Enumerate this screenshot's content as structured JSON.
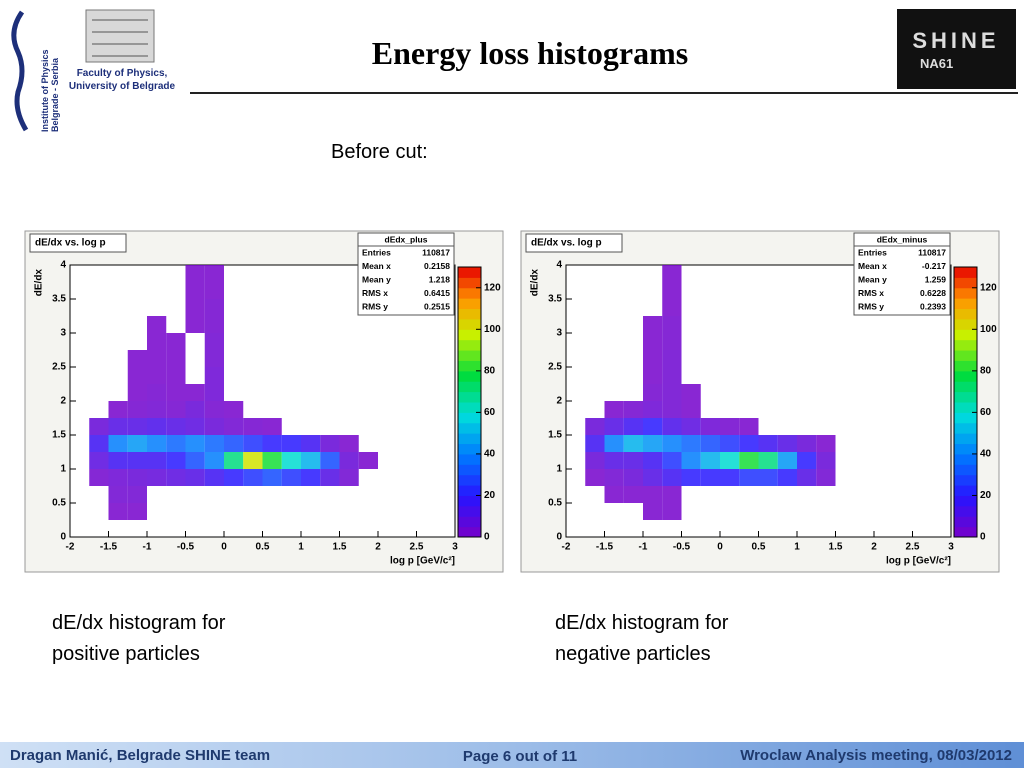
{
  "header": {
    "title": "Energy loss histograms",
    "affiliation": [
      "Faculty of Physics,",
      "University of Belgrade"
    ],
    "institute": [
      "Institute of Physics",
      "Belgrade - Serbia"
    ],
    "logo": [
      "SHINE",
      "NA61"
    ]
  },
  "subtitle": "Before cut:",
  "captions": [
    [
      "dE/dx histogram for",
      "positive particles"
    ],
    [
      "dE/dx histogram for",
      "negative particles"
    ]
  ],
  "footer": {
    "author": "Dragan Manić, Belgrade SHINE team",
    "page": "Page 6 out of 11",
    "meeting": "Wroclaw Analysis meeting,  08/03/2012"
  },
  "chart_data": [
    {
      "type": "heatmap",
      "title": "dE/dx vs. log p",
      "stats_title": "dEdx_plus",
      "stats": [
        {
          "label": "Entries",
          "value": 110817
        },
        {
          "label": "Mean x",
          "value": 0.2158
        },
        {
          "label": "Mean y",
          "value": 1.218
        },
        {
          "label": "RMS x",
          "value": 0.6415
        },
        {
          "label": "RMS y",
          "value": 0.2515
        }
      ],
      "xlabel": "log p [GeV/c²]",
      "ylabel": "dE/dx",
      "xlim": [
        -2,
        3
      ],
      "ylim": [
        0,
        4
      ],
      "xticks": [
        -2,
        -1.5,
        -1,
        -0.5,
        0,
        0.5,
        1,
        1.5,
        2,
        2.5,
        3
      ],
      "yticks": [
        0,
        0.5,
        1,
        1.5,
        2,
        2.5,
        3,
        3.5,
        4
      ],
      "zlim": [
        0,
        130
      ],
      "zticks": [
        0,
        20,
        40,
        60,
        80,
        100,
        120
      ],
      "xbins": [
        -2,
        -1.75,
        -1.5,
        -1.25,
        -1,
        -0.75,
        -0.5,
        -0.25,
        0,
        0.25,
        0.5,
        0.75,
        1,
        1.25,
        1.5,
        1.75,
        2,
        2.25,
        2.5,
        2.75,
        3
      ],
      "ybins": [
        0,
        0.25,
        0.5,
        0.75,
        1,
        1.25,
        1.5,
        1.75,
        2,
        2.25,
        2.5,
        2.75,
        3,
        3.25,
        3.5,
        3.75,
        4
      ],
      "counts": [
        [
          0,
          0,
          0,
          0,
          0,
          0,
          0,
          0,
          0,
          0,
          0,
          0,
          0,
          0,
          0,
          0,
          0,
          0,
          0,
          0
        ],
        [
          0,
          0,
          1,
          1,
          0,
          0,
          0,
          0,
          0,
          0,
          0,
          0,
          0,
          0,
          0,
          0,
          0,
          0,
          0,
          0
        ],
        [
          0,
          0,
          3,
          3,
          0,
          0,
          0,
          0,
          0,
          0,
          0,
          0,
          0,
          0,
          0,
          0,
          0,
          0,
          0,
          0
        ],
        [
          0,
          2,
          4,
          5,
          6,
          8,
          10,
          15,
          20,
          25,
          30,
          25,
          20,
          10,
          3,
          0,
          0,
          0,
          0,
          0
        ],
        [
          0,
          8,
          15,
          15,
          15,
          20,
          30,
          40,
          70,
          100,
          80,
          60,
          50,
          30,
          5,
          1,
          0,
          0,
          0,
          0
        ],
        [
          0,
          15,
          40,
          45,
          40,
          35,
          40,
          35,
          30,
          25,
          20,
          20,
          15,
          5,
          1,
          0,
          0,
          0,
          0,
          0
        ],
        [
          0,
          5,
          10,
          10,
          12,
          10,
          8,
          5,
          3,
          2,
          1,
          0,
          0,
          0,
          0,
          0,
          0,
          0,
          0,
          0
        ],
        [
          0,
          0,
          1,
          2,
          3,
          2,
          5,
          2,
          1,
          0,
          0,
          0,
          0,
          0,
          0,
          0,
          0,
          0,
          0,
          0
        ],
        [
          0,
          0,
          0,
          1,
          2,
          1,
          1,
          4,
          0,
          0,
          0,
          0,
          0,
          0,
          0,
          0,
          0,
          0,
          0,
          0
        ],
        [
          0,
          0,
          0,
          1,
          1,
          1,
          0,
          4,
          0,
          0,
          0,
          0,
          0,
          0,
          0,
          0,
          0,
          0,
          0,
          0
        ],
        [
          0,
          0,
          0,
          1,
          1,
          1,
          0,
          3,
          0,
          0,
          0,
          0,
          0,
          0,
          0,
          0,
          0,
          0,
          0,
          0
        ],
        [
          0,
          0,
          0,
          0,
          1,
          1,
          0,
          3,
          0,
          0,
          0,
          0,
          0,
          0,
          0,
          0,
          0,
          0,
          0,
          0
        ],
        [
          0,
          0,
          0,
          0,
          1,
          0,
          1,
          2,
          0,
          0,
          0,
          0,
          0,
          0,
          0,
          0,
          0,
          0,
          0,
          0
        ],
        [
          0,
          0,
          0,
          0,
          0,
          0,
          1,
          2,
          0,
          0,
          0,
          0,
          0,
          0,
          0,
          0,
          0,
          0,
          0,
          0
        ],
        [
          0,
          0,
          0,
          0,
          0,
          0,
          1,
          1,
          0,
          0,
          0,
          0,
          0,
          0,
          0,
          0,
          0,
          0,
          0,
          0
        ],
        [
          0,
          0,
          0,
          0,
          0,
          0,
          1,
          1,
          0,
          0,
          0,
          0,
          0,
          0,
          0,
          0,
          0,
          0,
          0,
          0
        ]
      ]
    },
    {
      "type": "heatmap",
      "title": "dE/dx vs. log p",
      "stats_title": "dEdx_minus",
      "stats": [
        {
          "label": "Entries",
          "value": 110817
        },
        {
          "label": "Mean x",
          "value": -0.217
        },
        {
          "label": "Mean y",
          "value": 1.259
        },
        {
          "label": "RMS x",
          "value": 0.6228
        },
        {
          "label": "RMS y",
          "value": 0.2393
        }
      ],
      "xlabel": "log p [GeV/c²]",
      "ylabel": "dE/dx",
      "xlim": [
        -2,
        3
      ],
      "ylim": [
        0,
        4
      ],
      "xticks": [
        -2,
        -1.5,
        -1,
        -0.5,
        0,
        0.5,
        1,
        1.5,
        2,
        2.5,
        3
      ],
      "yticks": [
        0,
        0.5,
        1,
        1.5,
        2,
        2.5,
        3,
        3.5,
        4
      ],
      "zlim": [
        0,
        130
      ],
      "zticks": [
        0,
        20,
        40,
        60,
        80,
        100,
        120
      ],
      "xbins": [
        -2,
        -1.75,
        -1.5,
        -1.25,
        -1,
        -0.75,
        -0.5,
        -0.25,
        0,
        0.25,
        0.5,
        0.75,
        1,
        1.25,
        1.5,
        1.75,
        2,
        2.25,
        2.5,
        2.75,
        3
      ],
      "ybins": [
        0,
        0.25,
        0.5,
        0.75,
        1,
        1.25,
        1.5,
        1.75,
        2,
        2.25,
        2.5,
        2.75,
        3,
        3.25,
        3.5,
        3.75,
        4
      ],
      "counts": [
        [
          0,
          0,
          0,
          0,
          0,
          0,
          0,
          0,
          0,
          0,
          0,
          0,
          0,
          0,
          0,
          0,
          0,
          0,
          0,
          0
        ],
        [
          0,
          0,
          0,
          0,
          1,
          1,
          0,
          0,
          0,
          0,
          0,
          0,
          0,
          0,
          0,
          0,
          0,
          0,
          0,
          0
        ],
        [
          0,
          0,
          1,
          1,
          1,
          1,
          0,
          0,
          0,
          0,
          0,
          0,
          0,
          0,
          0,
          0,
          0,
          0,
          0,
          0
        ],
        [
          0,
          1,
          3,
          5,
          10,
          15,
          20,
          20,
          20,
          25,
          25,
          20,
          10,
          3,
          0,
          0,
          0,
          0,
          0,
          0
        ],
        [
          0,
          5,
          10,
          10,
          15,
          25,
          40,
          50,
          60,
          80,
          70,
          45,
          20,
          5,
          0,
          0,
          0,
          0,
          0,
          0
        ],
        [
          0,
          15,
          40,
          50,
          45,
          40,
          35,
          30,
          25,
          20,
          15,
          10,
          5,
          1,
          0,
          0,
          0,
          0,
          0,
          0
        ],
        [
          0,
          5,
          10,
          15,
          20,
          12,
          8,
          4,
          2,
          1,
          0,
          0,
          0,
          0,
          0,
          0,
          0,
          0,
          0,
          0
        ],
        [
          0,
          0,
          1,
          2,
          4,
          3,
          1,
          0,
          0,
          0,
          0,
          0,
          0,
          0,
          0,
          0,
          0,
          0,
          0,
          0
        ],
        [
          0,
          0,
          0,
          0,
          2,
          3,
          1,
          0,
          0,
          0,
          0,
          0,
          0,
          0,
          0,
          0,
          0,
          0,
          0,
          0
        ],
        [
          0,
          0,
          0,
          0,
          1,
          3,
          0,
          0,
          0,
          0,
          0,
          0,
          0,
          0,
          0,
          0,
          0,
          0,
          0,
          0
        ],
        [
          0,
          0,
          0,
          0,
          1,
          3,
          0,
          0,
          0,
          0,
          0,
          0,
          0,
          0,
          0,
          0,
          0,
          0,
          0,
          0
        ],
        [
          0,
          0,
          0,
          0,
          1,
          2,
          0,
          0,
          0,
          0,
          0,
          0,
          0,
          0,
          0,
          0,
          0,
          0,
          0,
          0
        ],
        [
          0,
          0,
          0,
          0,
          1,
          2,
          0,
          0,
          0,
          0,
          0,
          0,
          0,
          0,
          0,
          0,
          0,
          0,
          0,
          0
        ],
        [
          0,
          0,
          0,
          0,
          0,
          1,
          0,
          0,
          0,
          0,
          0,
          0,
          0,
          0,
          0,
          0,
          0,
          0,
          0,
          0
        ],
        [
          0,
          0,
          0,
          0,
          0,
          1,
          0,
          0,
          0,
          0,
          0,
          0,
          0,
          0,
          0,
          0,
          0,
          0,
          0,
          0
        ],
        [
          0,
          0,
          0,
          0,
          0,
          1,
          0,
          0,
          0,
          0,
          0,
          0,
          0,
          0,
          0,
          0,
          0,
          0,
          0,
          0
        ]
      ]
    }
  ]
}
